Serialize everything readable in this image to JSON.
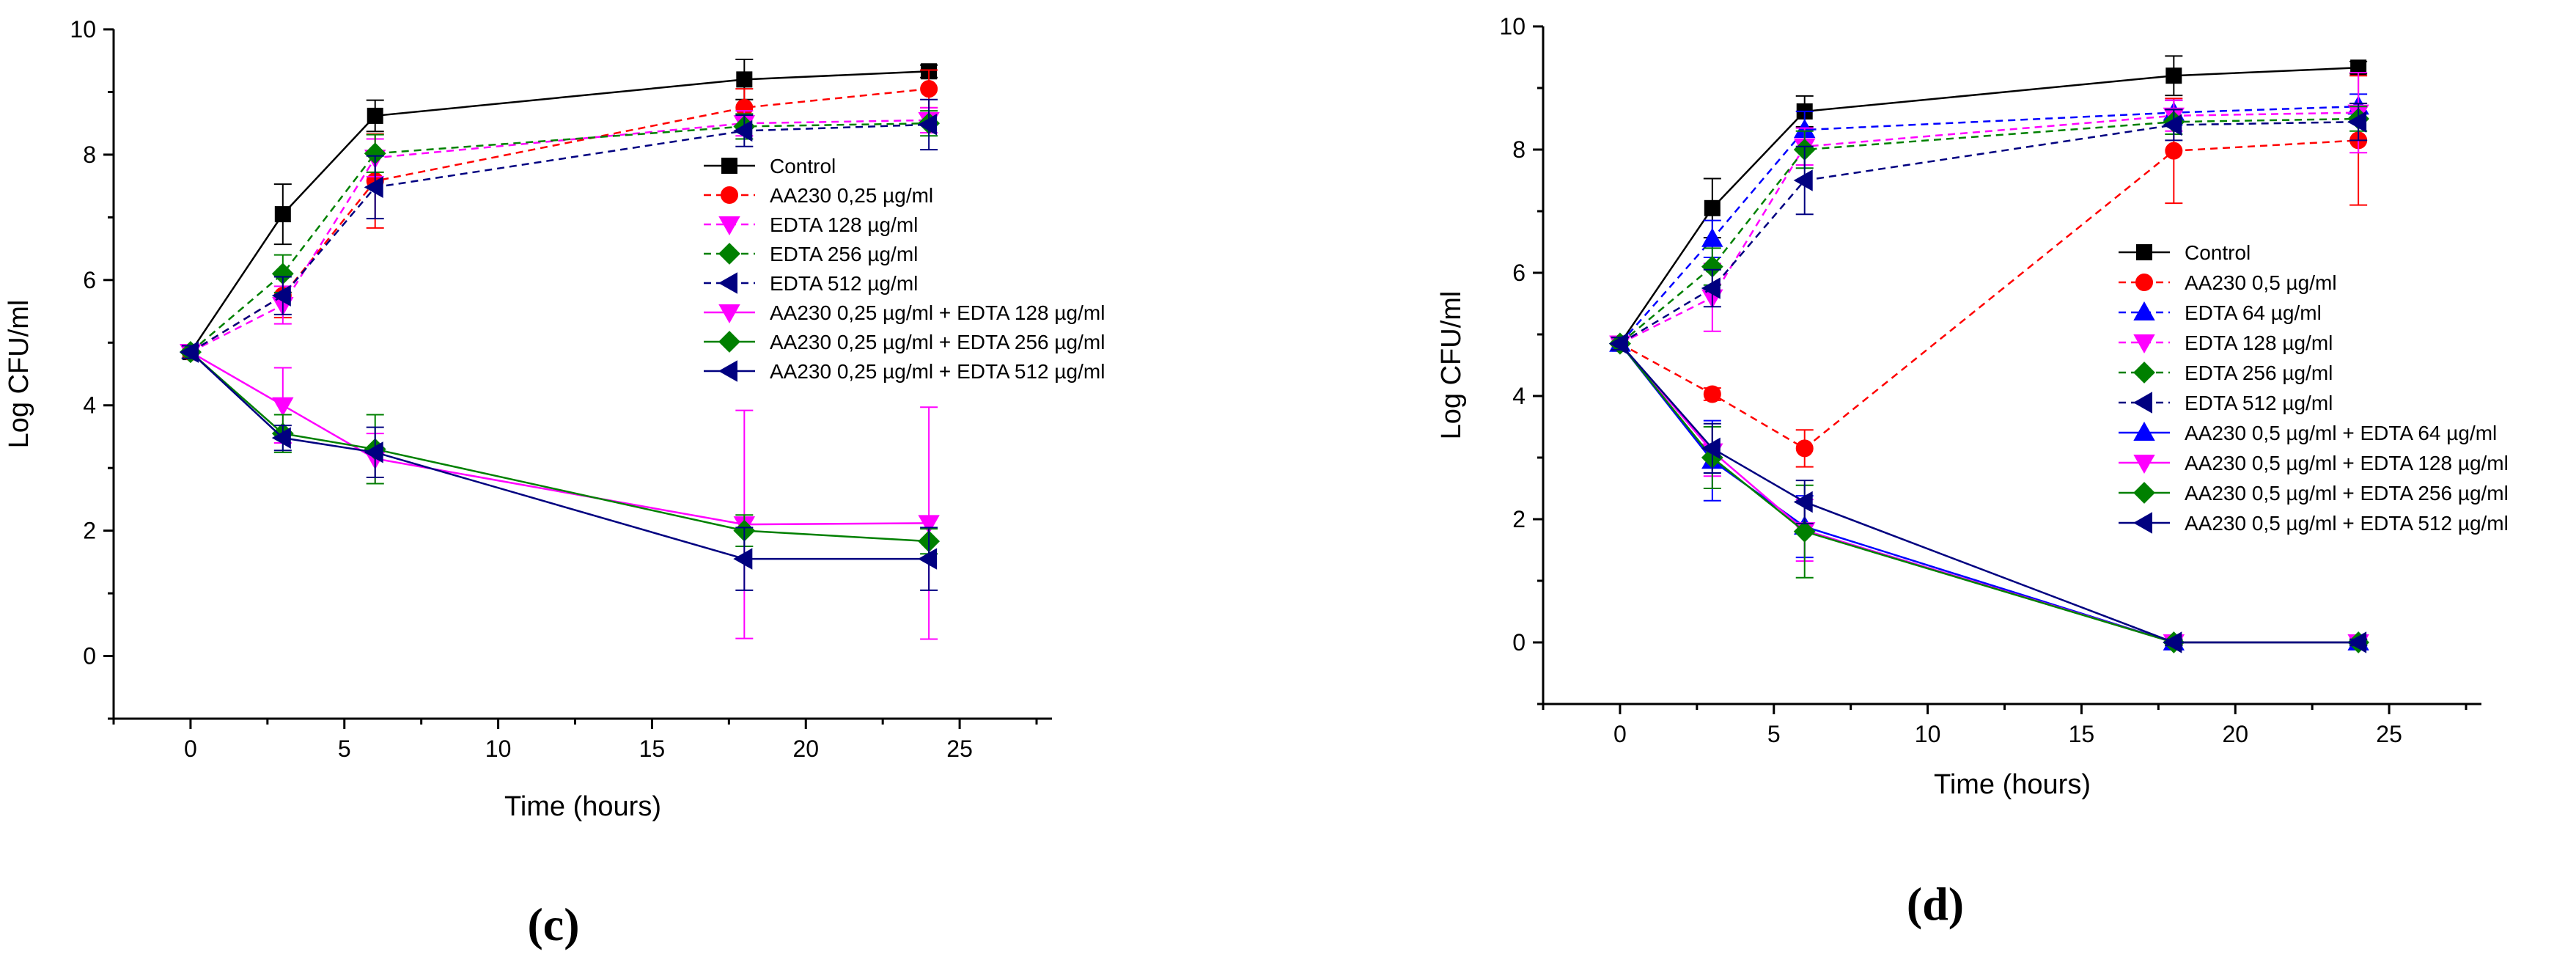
{
  "chart_data": [
    {
      "type": "line",
      "panel_label": "(c)",
      "xlabel": "Time (hours)",
      "ylabel": "Log CFU/ml",
      "xlim": [
        -2.5,
        28
      ],
      "ylim": [
        -1,
        10
      ],
      "xticks": [
        0,
        5,
        10,
        15,
        20,
        25
      ],
      "yticks": [
        0,
        2,
        4,
        6,
        8,
        10
      ],
      "grid": false,
      "legend_position": "top-right",
      "series": [
        {
          "name": "Control",
          "color": "#000000",
          "marker": "square",
          "dashed": false,
          "x": [
            0,
            3,
            6,
            18,
            24
          ],
          "y": [
            4.85,
            7.05,
            8.62,
            9.2,
            9.33
          ],
          "err": [
            0.1,
            0.48,
            0.25,
            0.32,
            0.1
          ]
        },
        {
          "name": "AA230 0,25 µg/ml",
          "color": "#ff0000",
          "marker": "circle",
          "dashed": true,
          "x": [
            0,
            3,
            6,
            18,
            24
          ],
          "y": [
            4.85,
            5.75,
            7.58,
            8.75,
            9.05
          ],
          "err": [
            0.1,
            0.35,
            0.75,
            0.3,
            0.3
          ]
        },
        {
          "name": "EDTA 128 µg/ml",
          "color": "#ff00ff",
          "marker": "tri-down",
          "dashed": true,
          "x": [
            0,
            3,
            6,
            18,
            24
          ],
          "y": [
            4.85,
            5.6,
            7.95,
            8.5,
            8.55
          ],
          "err": [
            0.1,
            0.3,
            0.3,
            0.2,
            0.2
          ]
        },
        {
          "name": "EDTA 256 µg/ml",
          "color": "#008000",
          "marker": "diamond",
          "dashed": true,
          "x": [
            0,
            3,
            6,
            18,
            24
          ],
          "y": [
            4.85,
            6.1,
            8.02,
            8.45,
            8.5
          ],
          "err": [
            0.1,
            0.3,
            0.3,
            0.2,
            0.2
          ]
        },
        {
          "name": "EDTA 512 µg/ml",
          "color": "#000080",
          "marker": "tri-left",
          "dashed": true,
          "x": [
            0,
            3,
            6,
            18,
            24
          ],
          "y": [
            4.85,
            5.75,
            7.48,
            8.38,
            8.48
          ],
          "err": [
            0.1,
            0.3,
            0.5,
            0.25,
            0.4
          ]
        },
        {
          "name": "AA230 0,25 µg/ml + EDTA 128 µg/ml",
          "color": "#ff00ff",
          "marker": "tri-down",
          "dashed": false,
          "x": [
            0,
            3,
            6,
            18,
            24
          ],
          "y": [
            4.85,
            4.0,
            3.15,
            2.1,
            2.12
          ],
          "err": [
            0.1,
            0.6,
            0.4,
            1.82,
            1.85
          ]
        },
        {
          "name": "AA230 0,25 µg/ml + EDTA 256 µg/ml",
          "color": "#008000",
          "marker": "diamond",
          "dashed": false,
          "x": [
            0,
            3,
            6,
            18,
            24
          ],
          "y": [
            4.85,
            3.55,
            3.3,
            2.0,
            1.83
          ],
          "err": [
            0.1,
            0.3,
            0.55,
            0.25,
            0.2
          ]
        },
        {
          "name": "AA230 0,25 µg/ml + EDTA 512 µg/ml",
          "color": "#000080",
          "marker": "tri-left",
          "dashed": false,
          "x": [
            0,
            3,
            6,
            18,
            24
          ],
          "y": [
            4.85,
            3.48,
            3.25,
            1.55,
            1.55
          ],
          "err": [
            0.1,
            0.2,
            0.4,
            0.5,
            0.5
          ]
        }
      ]
    },
    {
      "type": "line",
      "panel_label": "(d)",
      "xlabel": "Time (hours)",
      "ylabel": "Log CFU/ml",
      "xlim": [
        -2.5,
        28
      ],
      "ylim": [
        -1,
        10
      ],
      "xticks": [
        0,
        5,
        10,
        15,
        20,
        25
      ],
      "yticks": [
        0,
        2,
        4,
        6,
        8,
        10
      ],
      "grid": false,
      "legend_position": "center-right",
      "series": [
        {
          "name": "Control",
          "color": "#000000",
          "marker": "square",
          "dashed": false,
          "x": [
            0,
            3,
            6,
            18,
            24
          ],
          "y": [
            4.85,
            7.05,
            8.62,
            9.2,
            9.33
          ],
          "err": [
            0.1,
            0.48,
            0.25,
            0.32,
            0.1
          ]
        },
        {
          "name": "AA230 0,5 µg/ml",
          "color": "#ff0000",
          "marker": "circle",
          "dashed": true,
          "x": [
            0,
            3,
            6,
            18,
            24
          ],
          "y": [
            4.85,
            4.03,
            3.15,
            7.98,
            8.15
          ],
          "err": [
            0.1,
            0.1,
            0.3,
            0.85,
            1.05
          ]
        },
        {
          "name": "EDTA 64 µg/ml",
          "color": "#0000ff",
          "marker": "tri-up",
          "dashed": true,
          "x": [
            0,
            3,
            6,
            18,
            24
          ],
          "y": [
            4.85,
            6.55,
            8.32,
            8.6,
            8.7
          ],
          "err": [
            0.1,
            0.3,
            0.3,
            0.2,
            0.2
          ]
        },
        {
          "name": "EDTA 128 µg/ml",
          "color": "#ff00ff",
          "marker": "tri-down",
          "dashed": true,
          "x": [
            0,
            3,
            6,
            18,
            24
          ],
          "y": [
            4.85,
            5.6,
            8.05,
            8.55,
            8.6
          ],
          "err": [
            0.1,
            0.55,
            0.3,
            0.25,
            0.65
          ]
        },
        {
          "name": "EDTA 256 µg/ml",
          "color": "#008000",
          "marker": "diamond",
          "dashed": true,
          "x": [
            0,
            3,
            6,
            18,
            24
          ],
          "y": [
            4.85,
            6.1,
            8.0,
            8.45,
            8.5
          ],
          "err": [
            0.1,
            0.3,
            0.3,
            0.2,
            0.2
          ]
        },
        {
          "name": "EDTA 512 µg/ml",
          "color": "#000080",
          "marker": "tri-left",
          "dashed": true,
          "x": [
            0,
            3,
            6,
            18,
            24
          ],
          "y": [
            4.85,
            5.75,
            7.5,
            8.4,
            8.45
          ],
          "err": [
            0.1,
            0.3,
            0.55,
            0.25,
            0.3
          ]
        },
        {
          "name": "AA230 0,5 µg/ml + EDTA 64 µg/ml",
          "color": "#0000ff",
          "marker": "tri-up",
          "dashed": false,
          "x": [
            0,
            3,
            6,
            18,
            24
          ],
          "y": [
            4.85,
            2.95,
            1.88,
            0.0,
            0.0
          ],
          "err": [
            0.1,
            0.65,
            0.5,
            0.05,
            0.05
          ]
        },
        {
          "name": "AA230 0,5 µg/ml + EDTA 128 µg/ml",
          "color": "#ff00ff",
          "marker": "tri-down",
          "dashed": false,
          "x": [
            0,
            3,
            6,
            18,
            24
          ],
          "y": [
            4.85,
            3.1,
            1.82,
            0.0,
            0.0
          ],
          "err": [
            0.1,
            0.4,
            0.5,
            0.05,
            0.05
          ]
        },
        {
          "name": "AA230 0,5 µg/ml + EDTA 256 µg/ml",
          "color": "#008000",
          "marker": "diamond",
          "dashed": false,
          "x": [
            0,
            3,
            6,
            18,
            24
          ],
          "y": [
            4.85,
            3.0,
            1.8,
            0.0,
            0.0
          ],
          "err": [
            0.1,
            0.5,
            0.75,
            0.05,
            0.05
          ]
        },
        {
          "name": "AA230 0,5 µg/ml + EDTA 512 µg/ml",
          "color": "#000080",
          "marker": "tri-left",
          "dashed": false,
          "x": [
            0,
            3,
            6,
            18,
            24
          ],
          "y": [
            4.85,
            3.15,
            2.28,
            0.0,
            0.0
          ],
          "err": [
            0.1,
            0.4,
            0.35,
            0.05,
            0.05
          ]
        }
      ]
    }
  ]
}
